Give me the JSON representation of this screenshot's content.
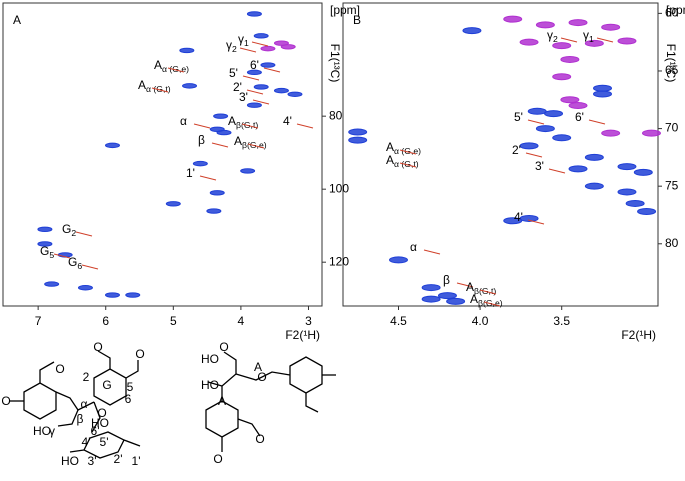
{
  "chart_data": [
    {
      "type": "scatter",
      "label": "A",
      "ylabel": "F1(¹³C)",
      "yunit": "[ppm]",
      "xlabel": "F2(¹H)",
      "xlim": [
        7.52,
        2.8
      ],
      "ylim": [
        49,
        132
      ],
      "xticks": [
        7,
        6,
        5,
        4,
        3
      ],
      "yticks": [
        80,
        100,
        120
      ],
      "series": [
        {
          "name": "positive",
          "color": "#1f3fd6",
          "x": [
            3.8,
            3.7,
            3.8,
            3.6,
            3.7,
            3.4,
            3.2,
            3.8,
            4.76,
            4.3,
            4.35,
            4.25,
            4.35,
            6.9,
            6.9,
            6.6,
            6.8,
            6.3,
            5.9,
            5.6,
            5.0,
            4.6,
            5.9,
            4.4,
            3.9,
            4.8
          ],
          "y": [
            52,
            58,
            68,
            66,
            72,
            73,
            74,
            77,
            71.7,
            80,
            83.6,
            84.5,
            101,
            111,
            115,
            118,
            126,
            127,
            129,
            129,
            104,
            93,
            88,
            106,
            95,
            62
          ]
        },
        {
          "name": "negative",
          "color": "#b030d0",
          "x": [
            3.4,
            3.6,
            3.3
          ],
          "y": [
            60,
            61.5,
            61
          ]
        }
      ],
      "annotations": [
        {
          "text": "γ",
          "sub": "1"
        },
        {
          "text": "γ",
          "sub": "2"
        },
        {
          "text": "6'"
        },
        {
          "text": "5'"
        },
        {
          "text": "2'"
        },
        {
          "text": "3'"
        },
        {
          "text": "4'"
        },
        {
          "text": "A",
          "sub": "α (G,e)"
        },
        {
          "text": "A",
          "sub": "α (G,t)"
        },
        {
          "text": "α"
        },
        {
          "text": "A",
          "sub": "β(G,t)"
        },
        {
          "text": "β"
        },
        {
          "text": "A",
          "sub": "β(G,e)"
        },
        {
          "text": "1'"
        },
        {
          "text": "G",
          "sub": "2"
        },
        {
          "text": "G",
          "sub": "5"
        },
        {
          "text": "G",
          "sub": "6"
        }
      ]
    },
    {
      "type": "scatter",
      "label": "B",
      "ylabel": "F1(¹³C)",
      "yunit": "[ppm]",
      "xlabel": "F2(¹H)",
      "xlim": [
        4.84,
        2.91
      ],
      "ylim": [
        59.1,
        85.4
      ],
      "xticks": [
        4.5,
        {
          "value": 4,
          "label": "4.0"
        },
        3.5
      ],
      "yticks": [
        60,
        65,
        70,
        75,
        80
      ],
      "series": [
        {
          "name": "positive",
          "color": "#1f3fd6",
          "x": [
            4.05,
            3.65,
            3.55,
            3.25,
            3.25,
            3.6,
            3.5,
            3.7,
            3.3,
            3.4,
            3.1,
            3.0,
            3.3,
            3.1,
            3.05,
            2.98,
            4.75,
            4.75,
            3.7,
            3.8,
            4.5,
            4.3,
            4.2,
            4.15,
            4.3
          ],
          "y": [
            61.5,
            68.5,
            68.7,
            66.5,
            67,
            70,
            70.8,
            71.5,
            72.5,
            73.5,
            73.3,
            73.8,
            75,
            75.5,
            76.5,
            77.2,
            70.3,
            71,
            77.8,
            78,
            81.4,
            83.8,
            84.5,
            85,
            84.8
          ]
        },
        {
          "name": "negative",
          "color": "#b030d0",
          "x": [
            3.8,
            3.6,
            3.4,
            3.2,
            3.7,
            3.5,
            3.3,
            3.1,
            3.45,
            3.5,
            3.45,
            3.4,
            3.2,
            2.95
          ],
          "y": [
            60.5,
            61,
            60.8,
            61.2,
            62.5,
            62.8,
            62.6,
            62.4,
            64,
            65.5,
            67.5,
            68,
            70.4,
            70.4
          ]
        }
      ],
      "annotations": [
        {
          "text": "γ",
          "sub": "2"
        },
        {
          "text": "γ",
          "sub": "1"
        },
        {
          "text": "5'"
        },
        {
          "text": "6'"
        },
        {
          "text": "2'"
        },
        {
          "text": "3'"
        },
        {
          "text": "4'"
        },
        {
          "text": "A",
          "sub": "α (G,e)"
        },
        {
          "text": "A",
          "sub": "α (G,t)"
        },
        {
          "text": "α"
        },
        {
          "text": "β"
        },
        {
          "text": "A",
          "sub": "β(G,t)"
        },
        {
          "text": "A",
          "sub": "β(G,e)"
        }
      ]
    }
  ],
  "structures": {
    "labels": [
      "O",
      "O",
      "G",
      "2",
      "5",
      "6",
      "α",
      "β",
      "γ",
      "O",
      "HO",
      "6'",
      "4'",
      "5'",
      "3'",
      "2'",
      "1'",
      "HO",
      "HO",
      "O",
      "O",
      "O",
      "HO",
      "HO",
      "A",
      "A",
      "O",
      "O",
      "O"
    ]
  }
}
